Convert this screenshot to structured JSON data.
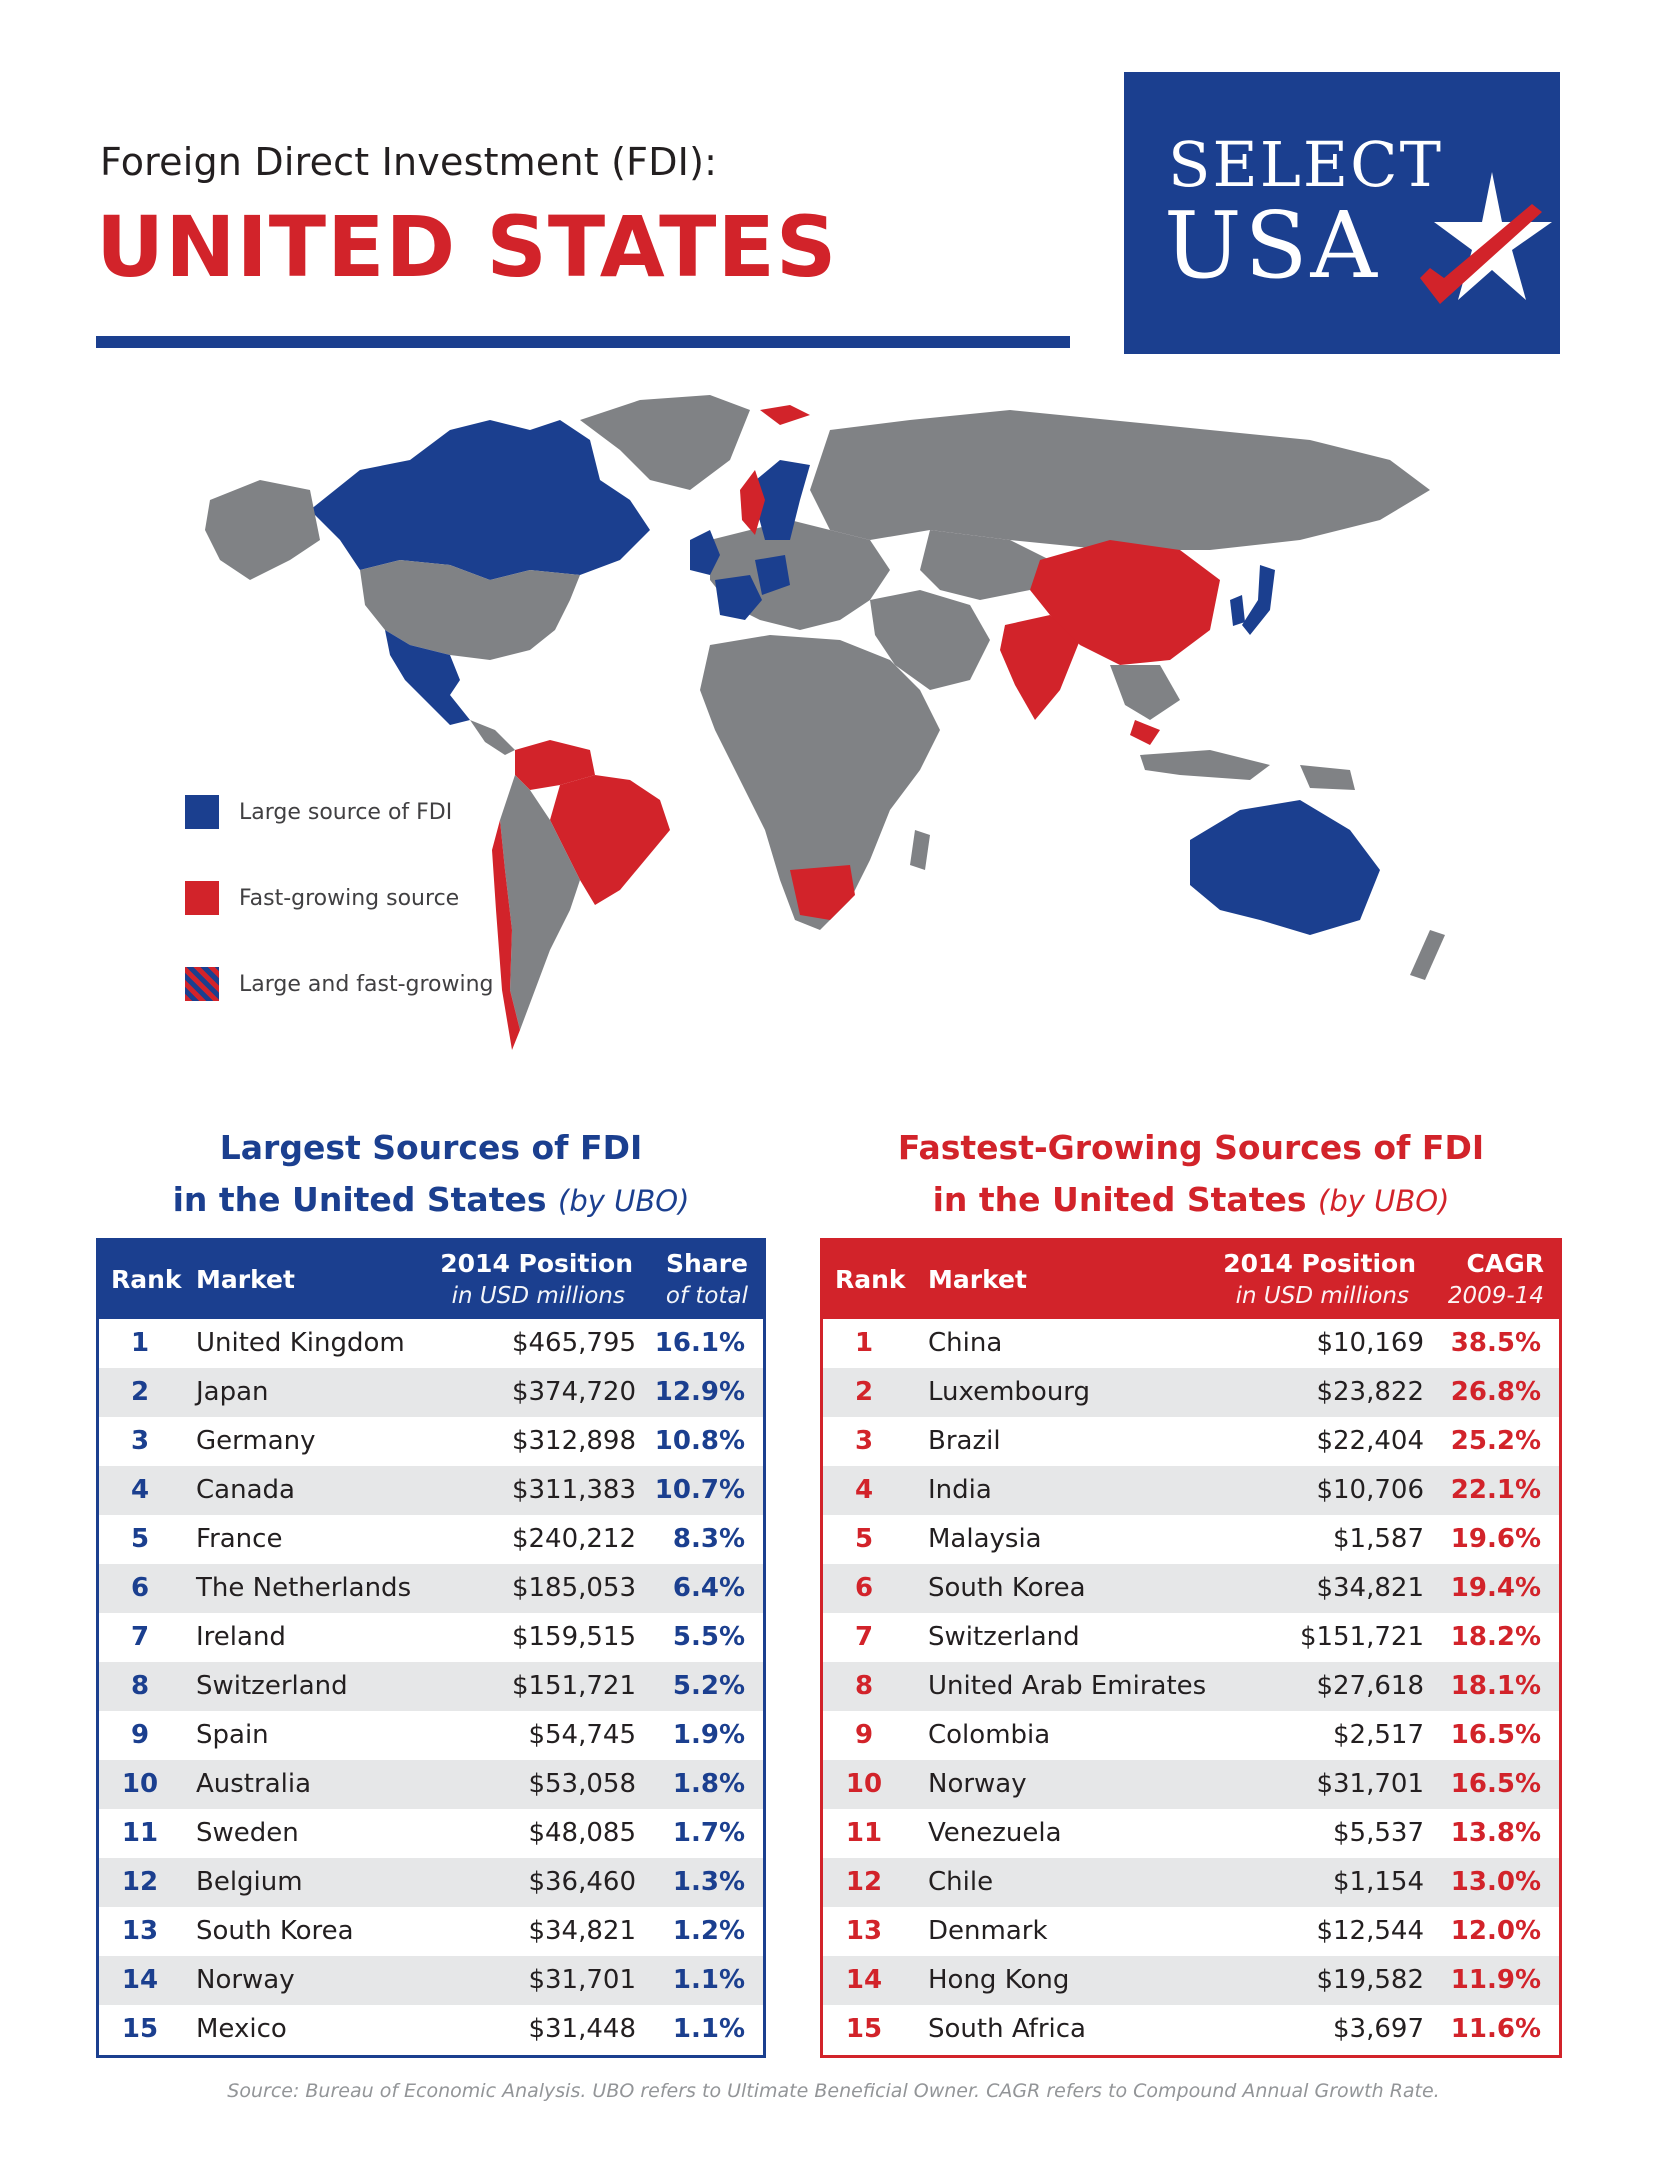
{
  "header": {
    "subtitle": "Foreign Direct Investment (FDI):",
    "title": "UNITED STATES"
  },
  "logo": {
    "line1": "SELECT",
    "line2": "USA"
  },
  "legend": {
    "items": [
      {
        "label": "Large source of FDI",
        "color": "#1b3f8f"
      },
      {
        "label": "Fast-growing source",
        "color": "#d2232a"
      },
      {
        "label": "Large and fast-growing",
        "color": "striped"
      }
    ]
  },
  "left_section": {
    "title_line1": "Largest Sources of FDI",
    "title_line2": "in the United States",
    "title_note": "(by UBO)",
    "columns": {
      "rank": "Rank",
      "market": "Market",
      "position": "2014 Position",
      "position_sub": "in USD millions",
      "share": "Share",
      "share_sub": "of total"
    },
    "rows": [
      {
        "rank": "1",
        "market": "United Kingdom",
        "value": "$465,795",
        "pct": "16.1%"
      },
      {
        "rank": "2",
        "market": "Japan",
        "value": "$374,720",
        "pct": "12.9%"
      },
      {
        "rank": "3",
        "market": "Germany",
        "value": "$312,898",
        "pct": "10.8%"
      },
      {
        "rank": "4",
        "market": "Canada",
        "value": "$311,383",
        "pct": "10.7%"
      },
      {
        "rank": "5",
        "market": "France",
        "value": "$240,212",
        "pct": "8.3%"
      },
      {
        "rank": "6",
        "market": "The Netherlands",
        "value": "$185,053",
        "pct": "6.4%"
      },
      {
        "rank": "7",
        "market": "Ireland",
        "value": "$159,515",
        "pct": "5.5%"
      },
      {
        "rank": "8",
        "market": "Switzerland",
        "value": "$151,721",
        "pct": "5.2%"
      },
      {
        "rank": "9",
        "market": "Spain",
        "value": "$54,745",
        "pct": "1.9%"
      },
      {
        "rank": "10",
        "market": "Australia",
        "value": "$53,058",
        "pct": "1.8%"
      },
      {
        "rank": "11",
        "market": "Sweden",
        "value": "$48,085",
        "pct": "1.7%"
      },
      {
        "rank": "12",
        "market": "Belgium",
        "value": "$36,460",
        "pct": "1.3%"
      },
      {
        "rank": "13",
        "market": "South Korea",
        "value": "$34,821",
        "pct": "1.2%"
      },
      {
        "rank": "14",
        "market": "Norway",
        "value": "$31,701",
        "pct": "1.1%"
      },
      {
        "rank": "15",
        "market": "Mexico",
        "value": "$31,448",
        "pct": "1.1%"
      }
    ]
  },
  "right_section": {
    "title_line1": "Fastest-Growing Sources of FDI",
    "title_line2": "in the United States",
    "title_note": "(by UBO)",
    "columns": {
      "rank": "Rank",
      "market": "Market",
      "position": "2014 Position",
      "position_sub": "in USD millions",
      "share": "CAGR",
      "share_sub": "2009-14"
    },
    "rows": [
      {
        "rank": "1",
        "market": "China",
        "value": "$10,169",
        "pct": "38.5%"
      },
      {
        "rank": "2",
        "market": "Luxembourg",
        "value": "$23,822",
        "pct": "26.8%"
      },
      {
        "rank": "3",
        "market": "Brazil",
        "value": "$22,404",
        "pct": "25.2%"
      },
      {
        "rank": "4",
        "market": "India",
        "value": "$10,706",
        "pct": "22.1%"
      },
      {
        "rank": "5",
        "market": "Malaysia",
        "value": "$1,587",
        "pct": "19.6%"
      },
      {
        "rank": "6",
        "market": "South Korea",
        "value": "$34,821",
        "pct": "19.4%"
      },
      {
        "rank": "7",
        "market": "Switzerland",
        "value": "$151,721",
        "pct": "18.2%"
      },
      {
        "rank": "8",
        "market": "United Arab Emirates",
        "value": "$27,618",
        "pct": "18.1%"
      },
      {
        "rank": "9",
        "market": "Colombia",
        "value": "$2,517",
        "pct": "16.5%"
      },
      {
        "rank": "10",
        "market": "Norway",
        "value": "$31,701",
        "pct": "16.5%"
      },
      {
        "rank": "11",
        "market": "Venezuela",
        "value": "$5,537",
        "pct": "13.8%"
      },
      {
        "rank": "12",
        "market": "Chile",
        "value": "$1,154",
        "pct": "13.0%"
      },
      {
        "rank": "13",
        "market": "Denmark",
        "value": "$12,544",
        "pct": "12.0%"
      },
      {
        "rank": "14",
        "market": "Hong Kong",
        "value": "$19,582",
        "pct": "11.9%"
      },
      {
        "rank": "15",
        "market": "South Africa",
        "value": "$3,697",
        "pct": "11.6%"
      }
    ]
  },
  "footer": {
    "source": "Source:  Bureau of Economic Analysis.  UBO refers to Ultimate Beneficial Owner.  CAGR refers to Compound Annual Growth Rate."
  },
  "colors": {
    "blue": "#1b3f8f",
    "red": "#d2232a",
    "land": "#808285",
    "row_alt": "#e6e7e8"
  }
}
